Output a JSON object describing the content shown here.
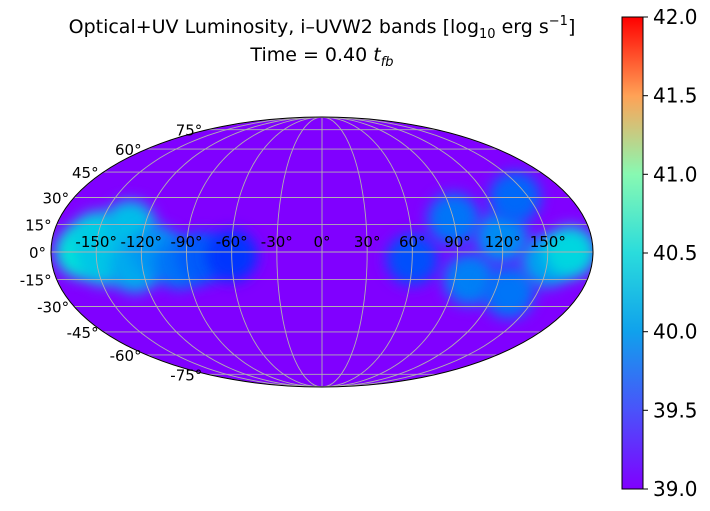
{
  "chart_data": {
    "type": "heatmap",
    "projection": "mollweide",
    "title": {
      "prefix": "Optical+UV Luminosity, i–UVW2 bands [log",
      "log_base": "10",
      "unit": " erg s",
      "exponent": "−1",
      "suffix": "]"
    },
    "subtitle": {
      "prefix": "Time = 0.40 ",
      "t": "t",
      "sub": "fb"
    },
    "lon_ticks": [
      {
        "label": "-150°",
        "deg": -150
      },
      {
        "label": "-120°",
        "deg": -120
      },
      {
        "label": "-90°",
        "deg": -90
      },
      {
        "label": "-60°",
        "deg": -60
      },
      {
        "label": "-30°",
        "deg": -30
      },
      {
        "label": "0°",
        "deg": 0
      },
      {
        "label": "30°",
        "deg": 30
      },
      {
        "label": "60°",
        "deg": 60
      },
      {
        "label": "90°",
        "deg": 90
      },
      {
        "label": "120°",
        "deg": 120
      },
      {
        "label": "150°",
        "deg": 150
      }
    ],
    "lat_ticks": [
      {
        "label": "75°",
        "deg": 75
      },
      {
        "label": "60°",
        "deg": 60
      },
      {
        "label": "45°",
        "deg": 45
      },
      {
        "label": "30°",
        "deg": 30
      },
      {
        "label": "15°",
        "deg": 15
      },
      {
        "label": "0°",
        "deg": 0
      },
      {
        "label": "-15°",
        "deg": -15
      },
      {
        "label": "-30°",
        "deg": -30
      },
      {
        "label": "-45°",
        "deg": -45
      },
      {
        "label": "-60°",
        "deg": -60
      },
      {
        "label": "-75°",
        "deg": -75
      }
    ],
    "grid": true,
    "background_value": 39.0,
    "features": [
      {
        "lon": -160,
        "lat": 0,
        "value": 40.05
      },
      {
        "lon": -150,
        "lat": 8,
        "value": 39.9
      },
      {
        "lon": -145,
        "lat": -4,
        "value": 39.85
      },
      {
        "lon": -130,
        "lat": 14,
        "value": 39.8
      },
      {
        "lon": -125,
        "lat": -8,
        "value": 39.7
      },
      {
        "lon": -110,
        "lat": 0,
        "value": 39.6
      },
      {
        "lon": -95,
        "lat": -6,
        "value": 39.45
      },
      {
        "lon": -80,
        "lat": -3,
        "value": 39.35
      },
      {
        "lon": -60,
        "lat": -2,
        "value": 39.2
      },
      {
        "lon": 60,
        "lat": -4,
        "value": 39.3
      },
      {
        "lon": 90,
        "lat": 18,
        "value": 39.45
      },
      {
        "lon": 100,
        "lat": -15,
        "value": 39.5
      },
      {
        "lon": 120,
        "lat": 8,
        "value": 39.55
      },
      {
        "lon": 130,
        "lat": -22,
        "value": 39.45
      },
      {
        "lon": 140,
        "lat": 30,
        "value": 39.4
      },
      {
        "lon": 150,
        "lat": -5,
        "value": 39.65
      },
      {
        "lon": 165,
        "lat": 0,
        "value": 39.95
      }
    ],
    "colorbar": {
      "colormap": "rainbow",
      "range": [
        39.0,
        42.0
      ],
      "ticks": [
        "39.0",
        "39.5",
        "40.0",
        "40.5",
        "41.0",
        "41.5",
        "42.0"
      ]
    }
  }
}
